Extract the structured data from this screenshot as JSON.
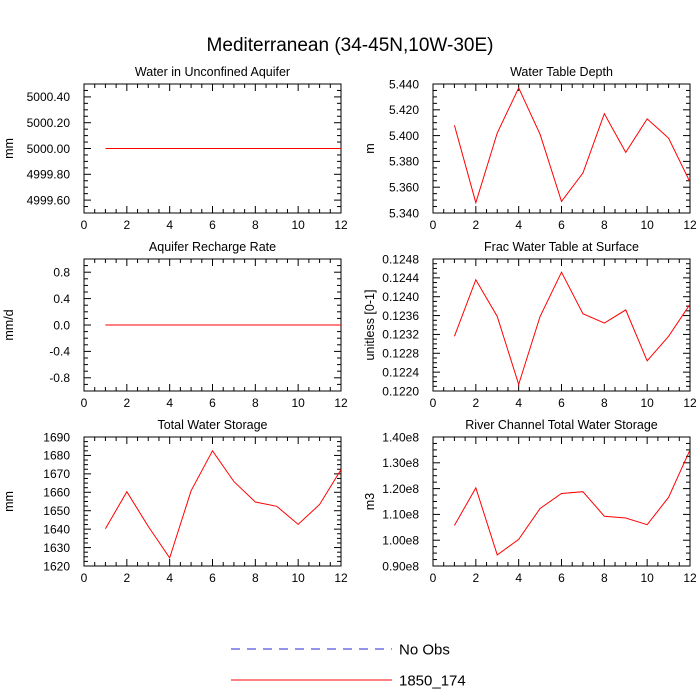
{
  "figure": {
    "title": "Mediterranean (34-45N,10W-30E)"
  },
  "legend": {
    "items": [
      {
        "label": "No Obs",
        "color": "#2a2ad8",
        "style": "dashed"
      },
      {
        "label": "1850_174",
        "color": "#ff0000",
        "style": "solid"
      }
    ]
  },
  "chart_data": [
    {
      "type": "line",
      "title": "Water in Unconfined Aquifer",
      "ylabel": "mm",
      "xlim": [
        0,
        12
      ],
      "xticks": [
        0,
        2,
        4,
        6,
        8,
        10,
        12
      ],
      "ylim": [
        4999.5,
        5000.5
      ],
      "yticks": [
        4999.6,
        4999.8,
        5000.0,
        5000.2,
        5000.4
      ],
      "ytick_labels": [
        "4999.60",
        "4999.80",
        "5000.00",
        "5000.20",
        "5000.40"
      ],
      "yminor": 0.05,
      "x": [
        1,
        2,
        3,
        4,
        5,
        6,
        7,
        8,
        9,
        10,
        11,
        12
      ],
      "series": [
        {
          "name": "1850_174",
          "color": "#ff0000",
          "values": [
            5000,
            5000,
            5000,
            5000,
            5000,
            5000,
            5000,
            5000,
            5000,
            5000,
            5000,
            5000
          ]
        }
      ]
    },
    {
      "type": "line",
      "title": "Water Table Depth",
      "ylabel": "m",
      "xlim": [
        0,
        12
      ],
      "xticks": [
        0,
        2,
        4,
        6,
        8,
        10,
        12
      ],
      "ylim": [
        5.34,
        5.44
      ],
      "yticks": [
        5.34,
        5.36,
        5.38,
        5.4,
        5.42,
        5.44
      ],
      "ytick_labels": [
        "5.340",
        "5.360",
        "5.380",
        "5.400",
        "5.420",
        "5.440"
      ],
      "yminor": 0.005,
      "x": [
        1,
        2,
        3,
        4,
        5,
        6,
        7,
        8,
        9,
        10,
        11,
        12
      ],
      "series": [
        {
          "name": "1850_174",
          "color": "#ff0000",
          "values": [
            5.408,
            5.348,
            5.402,
            5.437,
            5.401,
            5.349,
            5.371,
            5.417,
            5.387,
            5.413,
            5.398,
            5.364
          ]
        }
      ]
    },
    {
      "type": "line",
      "title": "Aquifer Recharge Rate",
      "ylabel": "mm/d",
      "xlim": [
        0,
        12
      ],
      "xticks": [
        0,
        2,
        4,
        6,
        8,
        10,
        12
      ],
      "ylim": [
        -1.0,
        1.0
      ],
      "yticks": [
        -0.8,
        -0.4,
        0.0,
        0.4,
        0.8
      ],
      "ytick_labels": [
        "-0.8",
        "-0.4",
        "0.0",
        "0.4",
        "0.8"
      ],
      "yminor": 0.1,
      "x": [
        1,
        2,
        3,
        4,
        5,
        6,
        7,
        8,
        9,
        10,
        11,
        12
      ],
      "series": [
        {
          "name": "1850_174",
          "color": "#ff0000",
          "values": [
            0,
            0,
            0,
            0,
            0,
            0,
            0,
            0,
            0,
            0,
            0,
            0
          ]
        }
      ]
    },
    {
      "type": "line",
      "title": "Frac Water Table at Surface",
      "ylabel": "unitless [0-1]",
      "xlim": [
        0,
        12
      ],
      "xticks": [
        0,
        2,
        4,
        6,
        8,
        10,
        12
      ],
      "ylim": [
        0.122,
        0.1248
      ],
      "yticks": [
        0.122,
        0.1224,
        0.1228,
        0.1232,
        0.1236,
        0.124,
        0.1244,
        0.1248
      ],
      "ytick_labels": [
        "0.1220",
        "0.1224",
        "0.1228",
        "0.1232",
        "0.1236",
        "0.1240",
        "0.1244",
        "0.1248"
      ],
      "yminor": 0.0001,
      "x": [
        1,
        2,
        3,
        4,
        5,
        6,
        7,
        8,
        9,
        10,
        11,
        12
      ],
      "series": [
        {
          "name": "1850_174",
          "color": "#ff0000",
          "values": [
            0.12316,
            0.12436,
            0.12358,
            0.12214,
            0.12358,
            0.12452,
            0.12364,
            0.12344,
            0.12372,
            0.12264,
            0.12316,
            0.12384
          ]
        }
      ]
    },
    {
      "type": "line",
      "title": "Total Water Storage",
      "ylabel": "mm",
      "xlim": [
        0,
        12
      ],
      "xticks": [
        0,
        2,
        4,
        6,
        8,
        10,
        12
      ],
      "ylim": [
        1620,
        1690
      ],
      "yticks": [
        1620,
        1630,
        1640,
        1650,
        1660,
        1670,
        1680,
        1690
      ],
      "ytick_labels": [
        "1620",
        "1630",
        "1640",
        "1650",
        "1660",
        "1670",
        "1680",
        "1690"
      ],
      "yminor": 2.5,
      "x": [
        1,
        2,
        3,
        4,
        5,
        6,
        7,
        8,
        9,
        10,
        11,
        12
      ],
      "series": [
        {
          "name": "1850_174",
          "color": "#ff0000",
          "values": [
            1640.2,
            1660.3,
            1641.5,
            1624.4,
            1660.8,
            1682.5,
            1665.8,
            1654.7,
            1652.4,
            1642.6,
            1653.4,
            1672.3
          ]
        }
      ]
    },
    {
      "type": "line",
      "title": "River Channel Total Water Storage",
      "ylabel": "m3",
      "xlim": [
        0,
        12
      ],
      "xticks": [
        0,
        2,
        4,
        6,
        8,
        10,
        12
      ],
      "ylim": [
        90000000,
        140000000
      ],
      "yticks": [
        90000000,
        100000000,
        110000000,
        120000000,
        130000000,
        140000000
      ],
      "ytick_labels": [
        "0.90e8",
        "1.00e8",
        "1.10e8",
        "1.20e8",
        "1.30e8",
        "1.40e8"
      ],
      "yminor": 2500000,
      "x": [
        1,
        2,
        3,
        4,
        5,
        6,
        7,
        8,
        9,
        10,
        11,
        12
      ],
      "series": [
        {
          "name": "1850_174",
          "color": "#ff0000",
          "values": [
            105700000,
            120300000,
            94300000,
            100300000,
            112300000,
            118100000,
            118800000,
            109300000,
            108600000,
            106000000,
            116600000,
            135000000
          ]
        }
      ]
    }
  ]
}
